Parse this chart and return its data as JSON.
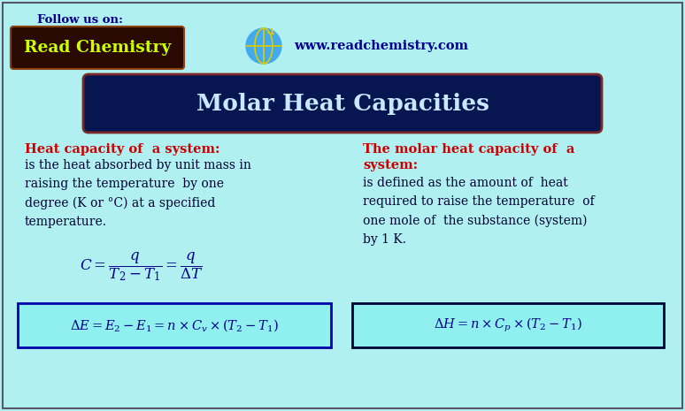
{
  "bg_color": "#b0f0f0",
  "title": "Molar Heat Capacities",
  "title_bg": "#071650",
  "title_color": "#c8e8ff",
  "follow_text": "Follow us on:",
  "follow_color": "#00008b",
  "brand_text": "Read Chemistry",
  "brand_color": "#ccff00",
  "brand_bg": "#2a0a00",
  "brand_edge": "#8b4010",
  "website_text": "www.readchemistry.com",
  "website_color": "#00008b",
  "section1_heading": "Heat capacity of  a system:",
  "section1_heading_color": "#cc0000",
  "section1_body": "is the heat absorbed by unit mass in\nraising the temperature  by one\ndegree (K or °C) at a specified\ntemperature.",
  "section1_body_color": "#000033",
  "section2_heading_line1": "The molar heat capacity of  a",
  "section2_heading_line2": "system:",
  "section2_heading_color": "#cc0000",
  "section2_body": "is defined as the amount of  heat\nrequired to raise the temperature  of\none mole of  the substance (system)\nby 1 K.",
  "section2_body_color": "#000033",
  "formula_color": "#00008b",
  "box1_bg": "#90f0f0",
  "box1_border": "#0000aa",
  "box2_bg": "#90f0f0",
  "box2_border": "#000033",
  "outer_border_color": "#555566",
  "globe_color": "#44aaee",
  "globe_line_color": "#ddcc00"
}
